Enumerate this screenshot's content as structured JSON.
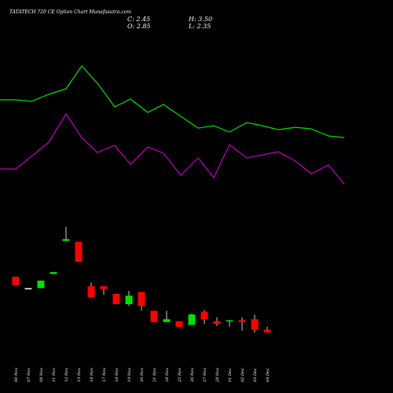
{
  "chart_data": {
    "type": "candlestick",
    "title": "TATATECH 720  CE Option  Chart Munafasutra.com",
    "readout": {
      "close": "C: 2.45",
      "high": "H: 3.50",
      "open": "O: 2.85",
      "low": "L: 2.35"
    },
    "categories": [
      "06 Nov",
      "07 Nov",
      "08 Nov",
      "11 Nov",
      "12 Nov",
      "13 Nov",
      "14 Nov",
      "17 Nov",
      "18 Nov",
      "19 Nov",
      "20 Nov",
      "21 Nov",
      "24 Nov",
      "25 Nov",
      "26 Nov",
      "27 Nov",
      "28 Nov",
      "01 Dec",
      "02 Dec",
      "03 Dec",
      "04 Dec"
    ],
    "candles": [
      {
        "open": 8.9,
        "close": 8.0,
        "high": 8.9,
        "low": 8.0,
        "color": "red"
      },
      {
        "open": 7.7,
        "close": 7.7,
        "high": 7.7,
        "low": 7.7,
        "color": "white"
      },
      {
        "open": 7.7,
        "close": 8.5,
        "high": 8.5,
        "low": 7.7,
        "color": "green"
      },
      {
        "open": 9.2,
        "close": 9.4,
        "high": 9.4,
        "low": 9.2,
        "color": "green"
      },
      {
        "open": 12.7,
        "close": 12.9,
        "high": 14.2,
        "low": 12.7,
        "color": "green"
      },
      {
        "open": 12.6,
        "close": 10.5,
        "high": 12.6,
        "low": 10.5,
        "color": "red"
      },
      {
        "open": 7.9,
        "close": 6.7,
        "high": 8.3,
        "low": 6.7,
        "color": "red"
      },
      {
        "open": 7.9,
        "close": 7.6,
        "high": 7.9,
        "low": 7.0,
        "color": "red"
      },
      {
        "open": 7.1,
        "close": 6.0,
        "high": 7.1,
        "low": 6.0,
        "color": "red"
      },
      {
        "open": 6.0,
        "close": 6.9,
        "high": 7.4,
        "low": 5.8,
        "color": "green"
      },
      {
        "open": 7.3,
        "close": 5.8,
        "high": 7.3,
        "low": 5.3,
        "color": "red"
      },
      {
        "open": 5.3,
        "close": 4.1,
        "high": 5.3,
        "low": 4.1,
        "color": "red"
      },
      {
        "open": 4.1,
        "close": 4.4,
        "high": 5.3,
        "low": 4.1,
        "color": "green"
      },
      {
        "open": 4.2,
        "close": 3.6,
        "high": 4.2,
        "low": 3.6,
        "color": "red"
      },
      {
        "open": 3.8,
        "close": 4.9,
        "high": 5.0,
        "low": 3.8,
        "color": "green"
      },
      {
        "open": 5.2,
        "close": 4.4,
        "high": 5.4,
        "low": 3.9,
        "color": "red"
      },
      {
        "open": 4.2,
        "close": 3.9,
        "high": 4.6,
        "low": 3.7,
        "color": "red"
      },
      {
        "open": 4.3,
        "close": 4.2,
        "high": 4.3,
        "low": 3.6,
        "color": "green"
      },
      {
        "open": 4.3,
        "close": 4.1,
        "high": 4.6,
        "low": 3.2,
        "color": "red"
      },
      {
        "open": 4.4,
        "close": 3.3,
        "high": 4.9,
        "low": 3.0,
        "color": "red"
      },
      {
        "open": 3.3,
        "close": 3.0,
        "high": 3.6,
        "low": 3.0,
        "color": "red"
      }
    ],
    "series": [
      {
        "color": "#00e000",
        "points": [
          [
            0,
            127
          ],
          [
            20,
            127
          ],
          [
            40,
            129
          ],
          [
            62,
            120
          ],
          [
            84,
            113
          ],
          [
            104,
            84
          ],
          [
            124,
            106
          ],
          [
            146,
            136
          ],
          [
            166,
            126
          ],
          [
            188,
            143
          ],
          [
            208,
            133
          ],
          [
            230,
            148
          ],
          [
            252,
            163
          ],
          [
            272,
            160
          ],
          [
            292,
            168
          ],
          [
            314,
            156
          ],
          [
            334,
            160
          ],
          [
            354,
            165
          ],
          [
            376,
            162
          ],
          [
            396,
            164
          ],
          [
            418,
            173
          ],
          [
            438,
            175
          ]
        ]
      },
      {
        "color": "#c000c0",
        "points": [
          [
            0,
            215
          ],
          [
            20,
            215
          ],
          [
            40,
            199
          ],
          [
            62,
            181
          ],
          [
            84,
            145
          ],
          [
            104,
            175
          ],
          [
            124,
            194
          ],
          [
            146,
            185
          ],
          [
            166,
            209
          ],
          [
            188,
            187
          ],
          [
            208,
            195
          ],
          [
            230,
            223
          ],
          [
            252,
            201
          ],
          [
            272,
            226
          ],
          [
            292,
            184
          ],
          [
            314,
            201
          ],
          [
            334,
            197
          ],
          [
            354,
            193
          ],
          [
            376,
            205
          ],
          [
            396,
            221
          ],
          [
            418,
            210
          ],
          [
            438,
            234
          ]
        ]
      }
    ]
  }
}
